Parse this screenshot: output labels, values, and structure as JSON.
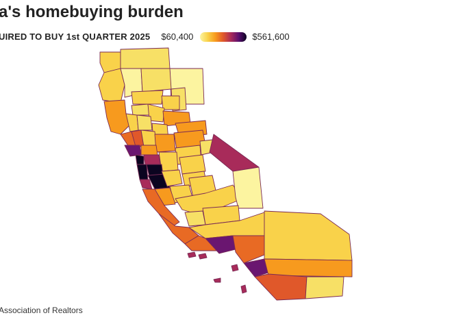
{
  "title": "a's homebuying burden",
  "legend": {
    "label": "UIRED TO BUY 1st QUARTER 2025",
    "min_value": "$60,400",
    "max_value": "$561,600",
    "gradient_colors": [
      "#fcf4a0",
      "#f9d24a",
      "#f79a1e",
      "#e0582a",
      "#a82b5a",
      "#5a0f6e",
      "#0b0420"
    ]
  },
  "source": "Association of Realtors",
  "colors": {
    "very_light": "#fcf4a0",
    "light": "#f7e066",
    "yellow": "#f9d24a",
    "orange": "#f79a1e",
    "dark_orange": "#e86a24",
    "red_orange": "#e0582a",
    "magenta": "#a82b5a",
    "purple": "#6a1670",
    "black": "#0b0420",
    "border": "#7a2a55"
  }
}
